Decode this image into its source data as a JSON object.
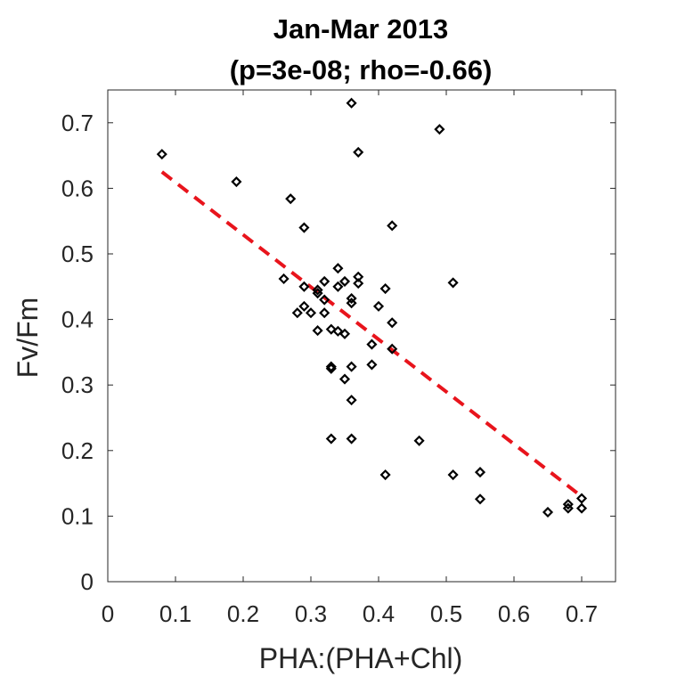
{
  "chart_data": {
    "type": "scatter",
    "title": "Jan-Mar 2013",
    "subtitle": "(p=3e-08; rho=-0.66)",
    "xlabel": "PHA:(PHA+Chl)",
    "ylabel": "Fv/Fm",
    "xlim": [
      0,
      0.75
    ],
    "ylim": [
      0,
      0.75
    ],
    "xticks": [
      "0",
      "0.1",
      "0.2",
      "0.3",
      "0.4",
      "0.5",
      "0.6",
      "0.7"
    ],
    "yticks": [
      "0",
      "0.1",
      "0.2",
      "0.3",
      "0.4",
      "0.5",
      "0.6",
      "0.7"
    ],
    "grid": false,
    "points_color": "#000000",
    "fit_color": "#e8141c",
    "points": [
      [
        0.08,
        0.652
      ],
      [
        0.19,
        0.61
      ],
      [
        0.27,
        0.584
      ],
      [
        0.29,
        0.54
      ],
      [
        0.36,
        0.73
      ],
      [
        0.37,
        0.655
      ],
      [
        0.49,
        0.69
      ],
      [
        0.42,
        0.543
      ],
      [
        0.26,
        0.462
      ],
      [
        0.29,
        0.45
      ],
      [
        0.31,
        0.44
      ],
      [
        0.31,
        0.445
      ],
      [
        0.32,
        0.43
      ],
      [
        0.32,
        0.458
      ],
      [
        0.34,
        0.478
      ],
      [
        0.34,
        0.45
      ],
      [
        0.35,
        0.458
      ],
      [
        0.36,
        0.432
      ],
      [
        0.36,
        0.425
      ],
      [
        0.37,
        0.465
      ],
      [
        0.37,
        0.455
      ],
      [
        0.28,
        0.41
      ],
      [
        0.29,
        0.42
      ],
      [
        0.3,
        0.41
      ],
      [
        0.32,
        0.41
      ],
      [
        0.31,
        0.383
      ],
      [
        0.33,
        0.385
      ],
      [
        0.34,
        0.382
      ],
      [
        0.35,
        0.378
      ],
      [
        0.41,
        0.447
      ],
      [
        0.4,
        0.42
      ],
      [
        0.42,
        0.395
      ],
      [
        0.39,
        0.362
      ],
      [
        0.42,
        0.355
      ],
      [
        0.51,
        0.456
      ],
      [
        0.33,
        0.328
      ],
      [
        0.33,
        0.325
      ],
      [
        0.36,
        0.328
      ],
      [
        0.35,
        0.309
      ],
      [
        0.39,
        0.331
      ],
      [
        0.36,
        0.277
      ],
      [
        0.33,
        0.218
      ],
      [
        0.36,
        0.218
      ],
      [
        0.46,
        0.215
      ],
      [
        0.41,
        0.163
      ],
      [
        0.51,
        0.163
      ],
      [
        0.55,
        0.167
      ],
      [
        0.55,
        0.126
      ],
      [
        0.65,
        0.106
      ],
      [
        0.68,
        0.118
      ],
      [
        0.68,
        0.112
      ],
      [
        0.7,
        0.127
      ],
      [
        0.7,
        0.112
      ]
    ],
    "fit_line": {
      "x": [
        0.08,
        0.7
      ],
      "y": [
        0.625,
        0.13
      ]
    }
  }
}
